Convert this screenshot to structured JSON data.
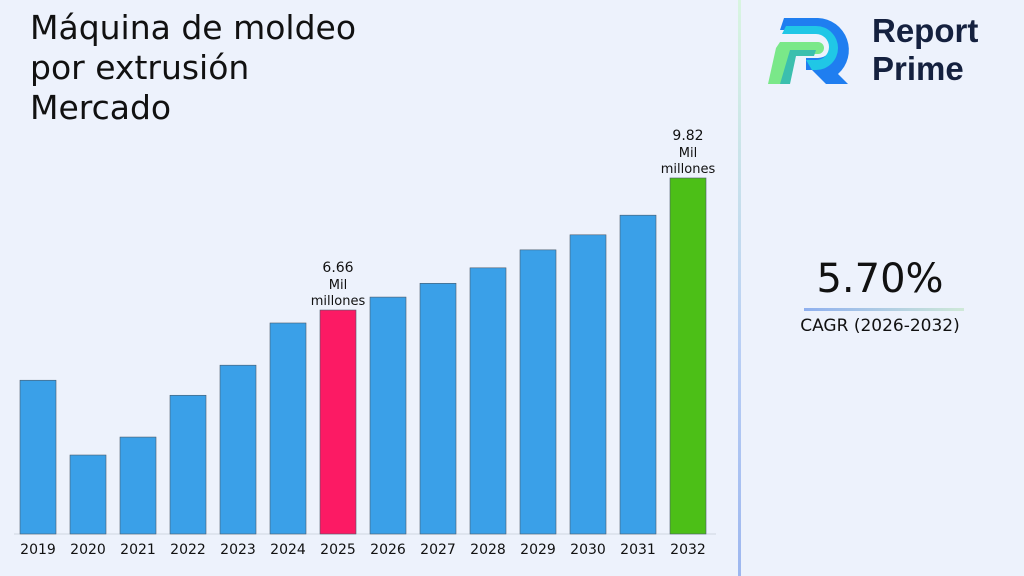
{
  "title": "Máquina de moldeo\npor extrusión\nMercado",
  "brand": {
    "line1": "Report",
    "line2": "Prime"
  },
  "cagr": {
    "value": "5.70%",
    "label": "CAGR (2026-2032)"
  },
  "chart_data": {
    "type": "bar",
    "categories": [
      "2019",
      "2020",
      "2021",
      "2022",
      "2023",
      "2024",
      "2025",
      "2026",
      "2027",
      "2028",
      "2029",
      "2030",
      "2031",
      "2032"
    ],
    "values": [
      4.98,
      3.19,
      3.62,
      4.62,
      5.34,
      6.35,
      6.66,
      6.97,
      7.3,
      7.67,
      8.1,
      8.46,
      8.93,
      9.82
    ],
    "ylim": [
      1.3,
      10.5
    ],
    "grid": false,
    "colors": {
      "default": "#3aa0e8",
      "highlight_2025": "#fc1a64",
      "highlight_2032": "#4cbf17"
    },
    "annotations": [
      {
        "category": "2025",
        "value": "6.66",
        "unit1": "Mil",
        "unit2": "millones"
      },
      {
        "category": "2032",
        "value": "9.82",
        "unit1": "Mil",
        "unit2": "millones"
      }
    ]
  }
}
